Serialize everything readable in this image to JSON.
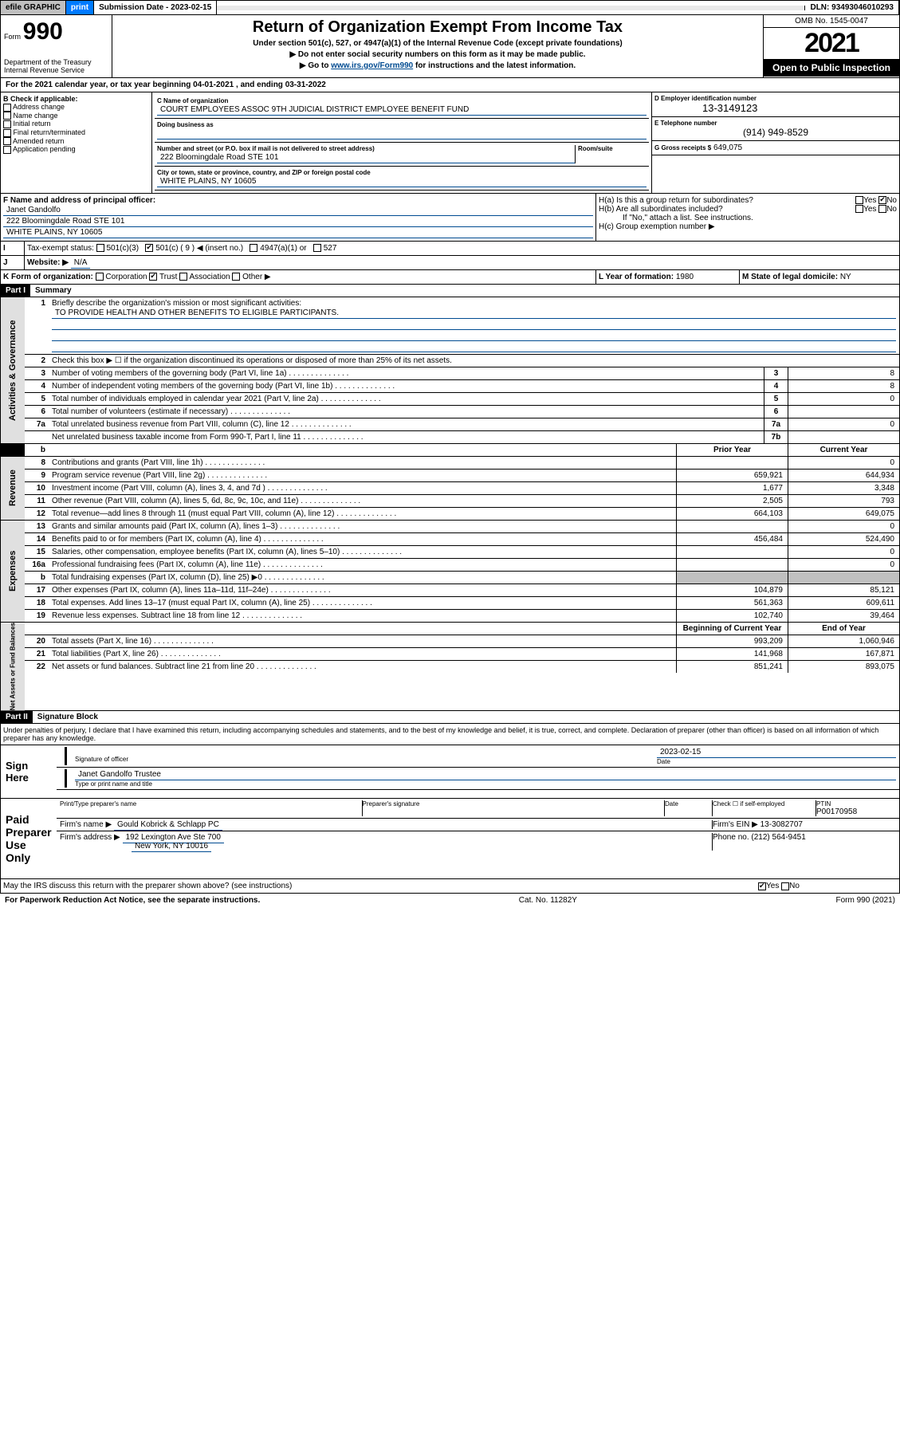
{
  "top": {
    "efile": "efile GRAPHIC",
    "print": "print",
    "sub_label": "Submission Date - 2023-02-15",
    "dln": "DLN: 93493046010293"
  },
  "header": {
    "form": "Form",
    "num": "990",
    "dept": "Department of the Treasury\nInternal Revenue Service",
    "title": "Return of Organization Exempt From Income Tax",
    "line1": "Under section 501(c), 527, or 4947(a)(1) of the Internal Revenue Code (except private foundations)",
    "line2": "▶ Do not enter social security numbers on this form as it may be made public.",
    "line3_pre": "▶ Go to ",
    "line3_link": "www.irs.gov/Form990",
    "line3_post": " for instructions and the latest information.",
    "omb": "OMB No. 1545-0047",
    "year": "2021",
    "inspect": "Open to Public Inspection"
  },
  "A": {
    "text": "For the 2021 calendar year, or tax year beginning 04-01-2021   , and ending 03-31-2022"
  },
  "B": {
    "label": "B Check if applicable:",
    "items": [
      "Address change",
      "Name change",
      "Initial return",
      "Final return/terminated",
      "Amended return",
      "Application pending"
    ]
  },
  "C": {
    "label": "C Name of organization",
    "name": "COURT EMPLOYEES ASSOC 9TH JUDICIAL DISTRICT EMPLOYEE BENEFIT FUND",
    "dba_label": "Doing business as",
    "addr_label": "Number and street (or P.O. box if mail is not delivered to street address)",
    "room_label": "Room/suite",
    "addr": "222 Bloomingdale Road STE 101",
    "city_label": "City or town, state or province, country, and ZIP or foreign postal code",
    "city": "WHITE PLAINS, NY  10605"
  },
  "D": {
    "label": "D Employer identification number",
    "val": "13-3149123"
  },
  "E": {
    "label": "E Telephone number",
    "val": "(914) 949-8529"
  },
  "G": {
    "label": "G Gross receipts $",
    "val": "649,075"
  },
  "F": {
    "label": "F Name and address of principal officer:",
    "name": "Janet Gandolfo",
    "addr1": "222 Bloomingdale Road STE 101",
    "addr2": "WHITE PLAINS, NY  10605"
  },
  "H": {
    "a": "H(a)  Is this a group return for subordinates?",
    "b": "H(b)  Are all subordinates included?",
    "note": "If \"No,\" attach a list. See instructions.",
    "c": "H(c)  Group exemption number ▶",
    "yes": "Yes",
    "no": "No"
  },
  "I": {
    "label": "Tax-exempt status:",
    "opts": [
      "501(c)(3)",
      "501(c) ( 9 ) ◀ (insert no.)",
      "4947(a)(1) or",
      "527"
    ],
    "checked": 1
  },
  "J": {
    "label": "Website: ▶",
    "val": "N/A"
  },
  "K": {
    "label": "K Form of organization:",
    "opts": [
      "Corporation",
      "Trust",
      "Association",
      "Other ▶"
    ],
    "checked": 1
  },
  "L": {
    "label": "L Year of formation:",
    "val": "1980"
  },
  "M": {
    "label": "M State of legal domicile:",
    "val": "NY"
  },
  "part1": {
    "bar": "Part I",
    "title": "Summary"
  },
  "summary": {
    "gov": {
      "tab": "Activities & Governance",
      "l1": "Briefly describe the organization's mission or most significant activities:",
      "l1val": "TO PROVIDE HEALTH AND OTHER BENEFITS TO ELIGIBLE PARTICIPANTS.",
      "l2": "Check this box ▶ ☐  if the organization discontinued its operations or disposed of more than 25% of its net assets.",
      "rows": [
        {
          "n": "3",
          "d": "Number of voting members of the governing body (Part VI, line 1a)",
          "c": "3",
          "v": "8"
        },
        {
          "n": "4",
          "d": "Number of independent voting members of the governing body (Part VI, line 1b)",
          "c": "4",
          "v": "8"
        },
        {
          "n": "5",
          "d": "Total number of individuals employed in calendar year 2021 (Part V, line 2a)",
          "c": "5",
          "v": "0"
        },
        {
          "n": "6",
          "d": "Total number of volunteers (estimate if necessary)",
          "c": "6",
          "v": ""
        },
        {
          "n": "7a",
          "d": "Total unrelated business revenue from Part VIII, column (C), line 12",
          "c": "7a",
          "v": "0"
        },
        {
          "n": "",
          "d": "Net unrelated business taxable income from Form 990-T, Part I, line 11",
          "c": "7b",
          "v": ""
        }
      ]
    },
    "headers": {
      "b": "b",
      "py": "Prior Year",
      "cy": "Current Year"
    },
    "rev": {
      "tab": "Revenue",
      "rows": [
        {
          "n": "8",
          "d": "Contributions and grants (Part VIII, line 1h)",
          "p": "",
          "c": "0"
        },
        {
          "n": "9",
          "d": "Program service revenue (Part VIII, line 2g)",
          "p": "659,921",
          "c": "644,934"
        },
        {
          "n": "10",
          "d": "Investment income (Part VIII, column (A), lines 3, 4, and 7d )",
          "p": "1,677",
          "c": "3,348"
        },
        {
          "n": "11",
          "d": "Other revenue (Part VIII, column (A), lines 5, 6d, 8c, 9c, 10c, and 11e)",
          "p": "2,505",
          "c": "793"
        },
        {
          "n": "12",
          "d": "Total revenue—add lines 8 through 11 (must equal Part VIII, column (A), line 12)",
          "p": "664,103",
          "c": "649,075"
        }
      ]
    },
    "exp": {
      "tab": "Expenses",
      "rows": [
        {
          "n": "13",
          "d": "Grants and similar amounts paid (Part IX, column (A), lines 1–3)",
          "p": "",
          "c": "0"
        },
        {
          "n": "14",
          "d": "Benefits paid to or for members (Part IX, column (A), line 4)",
          "p": "456,484",
          "c": "524,490"
        },
        {
          "n": "15",
          "d": "Salaries, other compensation, employee benefits (Part IX, column (A), lines 5–10)",
          "p": "",
          "c": "0"
        },
        {
          "n": "16a",
          "d": "Professional fundraising fees (Part IX, column (A), line 11e)",
          "p": "",
          "c": "0"
        },
        {
          "n": "b",
          "d": "Total fundraising expenses (Part IX, column (D), line 25) ▶0",
          "p": "shade",
          "c": "shade"
        },
        {
          "n": "17",
          "d": "Other expenses (Part IX, column (A), lines 11a–11d, 11f–24e)",
          "p": "104,879",
          "c": "85,121"
        },
        {
          "n": "18",
          "d": "Total expenses. Add lines 13–17 (must equal Part IX, column (A), line 25)",
          "p": "561,363",
          "c": "609,611"
        },
        {
          "n": "19",
          "d": "Revenue less expenses. Subtract line 18 from line 12",
          "p": "102,740",
          "c": "39,464"
        }
      ]
    },
    "net": {
      "tab": "Net Assets or Fund Balances",
      "headers": {
        "b": "Beginning of Current Year",
        "e": "End of Year"
      },
      "rows": [
        {
          "n": "20",
          "d": "Total assets (Part X, line 16)",
          "p": "993,209",
          "c": "1,060,946"
        },
        {
          "n": "21",
          "d": "Total liabilities (Part X, line 26)",
          "p": "141,968",
          "c": "167,871"
        },
        {
          "n": "22",
          "d": "Net assets or fund balances. Subtract line 21 from line 20",
          "p": "851,241",
          "c": "893,075"
        }
      ]
    }
  },
  "part2": {
    "bar": "Part II",
    "title": "Signature Block"
  },
  "sig": {
    "decl": "Under penalties of perjury, I declare that I have examined this return, including accompanying schedules and statements, and to the best of my knowledge and belief, it is true, correct, and complete. Declaration of preparer (other than officer) is based on all information of which preparer has any knowledge.",
    "here": "Sign Here",
    "sig_label": "Signature of officer",
    "date_label": "Date",
    "date_val": "2023-02-15",
    "name": "Janet Gandolfo  Trustee",
    "name_label": "Type or print name and title",
    "paid": "Paid Preparer Use Only",
    "prep_name": "Print/Type preparer's name",
    "prep_sig": "Preparer's signature",
    "check_self": "Check ☐ if self-employed",
    "ptin_label": "PTIN",
    "ptin": "P00170958",
    "firm_name_label": "Firm's name   ▶",
    "firm_name": "Gould Kobrick & Schlapp PC",
    "firm_ein_label": "Firm's EIN ▶",
    "firm_ein": "13-3082707",
    "firm_addr_label": "Firm's address ▶",
    "firm_addr": "192 Lexington Ave Ste 700",
    "firm_city": "New York, NY  10016",
    "phone_label": "Phone no.",
    "phone": "(212) 564-9451",
    "discuss": "May the IRS discuss this return with the preparer shown above? (see instructions)"
  },
  "foot": {
    "left": "For Paperwork Reduction Act Notice, see the separate instructions.",
    "mid": "Cat. No. 11282Y",
    "right": "Form 990 (2021)"
  }
}
